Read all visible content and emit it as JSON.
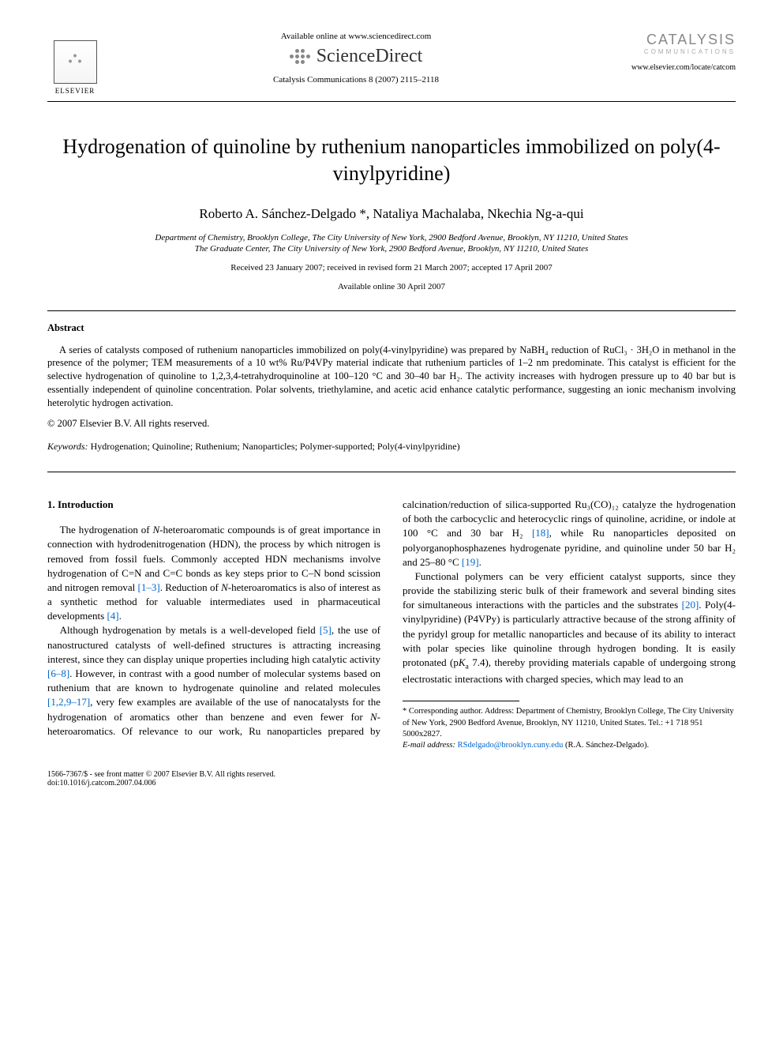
{
  "header": {
    "elsevier_label": "ELSEVIER",
    "available_online": "Available online at www.sciencedirect.com",
    "sciencedirect": "ScienceDirect",
    "journal_ref": "Catalysis Communications 8 (2007) 2115–2118",
    "journal_logo": "CATALYSIS",
    "journal_logo_sub": "COMMUNICATIONS",
    "locate_url": "www.elsevier.com/locate/catcom"
  },
  "title": "Hydrogenation of quinoline by ruthenium nanoparticles immobilized on poly(4-vinylpyridine)",
  "authors": "Roberto A. Sánchez-Delgado *, Nataliya Machalaba, Nkechia Ng-a-qui",
  "affiliations": [
    "Department of Chemistry, Brooklyn College, The City University of New York, 2900 Bedford Avenue, Brooklyn, NY 11210, United States",
    "The Graduate Center, The City University of New York, 2900 Bedford Avenue, Brooklyn, NY 11210, United States"
  ],
  "dates_line1": "Received 23 January 2007; received in revised form 21 March 2007; accepted 17 April 2007",
  "dates_line2": "Available online 30 April 2007",
  "abstract_heading": "Abstract",
  "abstract_text": "A series of catalysts composed of ruthenium nanoparticles immobilized on poly(4-vinylpyridine) was prepared by NaBH₄ reduction of RuCl₃ · 3H₂O in methanol in the presence of the polymer; TEM measurements of a 10 wt% Ru/P4VPy material indicate that ruthenium particles of 1–2 nm predominate. This catalyst is efficient for the selective hydrogenation of quinoline to 1,2,3,4-tetrahydroquinoline at 100–120 °C and 30–40 bar H₂. The activity increases with hydrogen pressure up to 40 bar but is essentially independent of quinoline concentration. Polar solvents, triethylamine, and acetic acid enhance catalytic performance, suggesting an ionic mechanism involving heterolytic hydrogen activation.",
  "abstract_copyright": "© 2007 Elsevier B.V. All rights reserved.",
  "keywords_label": "Keywords:",
  "keywords": " Hydrogenation; Quinoline; Ruthenium; Nanoparticles; Polymer-supported; Poly(4-vinylpyridine)",
  "intro_heading": "1. Introduction",
  "para1_a": "The hydrogenation of ",
  "para1_b": "-heteroaromatic compounds is of great importance in connection with hydrodenitrogenation (HDN), the process by which nitrogen is removed from fossil fuels. Commonly accepted HDN mechanisms involve hydrogenation of C=N and C=C bonds as key steps prior to C–N bond scission and nitrogen removal ",
  "ref1": "[1–3]",
  "para1_c": ". Reduction of ",
  "para1_d": "-heteroaromatics is also of interest as a synthetic method for valuable intermediates used in pharmaceutical developments ",
  "ref2": "[4]",
  "para1_e": ".",
  "para2_a": "Although hydrogenation by metals is a well-developed field ",
  "ref3": "[5]",
  "para2_b": ", the use of nanostructured catalysts of well-defined structures is attracting increasing interest, since they can display unique properties including high catalytic activity ",
  "ref4": "[6–8]",
  "para2_c": ". However, in contrast with a good number of molecular ",
  "para2_d": "systems based on ruthenium that are known to hydrogenate quinoline and related molecules ",
  "ref5": "[1,2,9–17]",
  "para2_e": ", very few examples are available of the use of nanocatalysts for the hydrogenation of aromatics other than benzene and even fewer for ",
  "para2_f": "-heteroaromatics. Of relevance to our work, Ru nanoparticles prepared by calcination/reduction of silica-supported Ru₃(CO)₁₂ catalyze the hydrogenation of both the carbocyclic and heterocyclic rings of quinoline, acridine, or indole at 100 °C and 30 bar H₂ ",
  "ref6": "[18]",
  "para2_g": ", while Ru nanoparticles deposited on polyorganophosphazenes hydrogenate pyridine, and quinoline under 50 bar H₂ and 25–80 °C ",
  "ref7": "[19]",
  "para2_h": ".",
  "para3_a": "Functional polymers can be very efficient catalyst supports, since they provide the stabilizing steric bulk of their framework and several binding sites for simultaneous interactions with the particles and the substrates ",
  "ref8": "[20]",
  "para3_b": ". Poly(4-vinylpyridine) (P4VPy) is particularly attractive because of the strong affinity of the pyridyl group for metallic nanoparticles and because of its ability to interact with polar species like quinoline through hydrogen bonding. It is easily protonated (p",
  "para3_c": " 7.4), thereby providing materials capable of undergoing strong electrostatic interactions with charged species, which may lead to an",
  "footnote_marker": "*",
  "footnote_text": " Corresponding author. Address: Department of Chemistry, Brooklyn College, The City University of New York, 2900 Bedford Avenue, Brooklyn, NY 11210, United States. Tel.: +1 718 951 5000x2827.",
  "footnote_email_label": "E-mail address:",
  "footnote_email": " RSdelgado@brooklyn.cuny.edu",
  "footnote_email_tail": " (R.A. Sánchez-Delgado).",
  "footer_line1": "1566-7367/$ - see front matter © 2007 Elsevier B.V. All rights reserved.",
  "footer_line2": "doi:10.1016/j.catcom.2007.04.006",
  "style": {
    "page_bg": "#ffffff",
    "text_color": "#000000",
    "link_color": "#0066cc",
    "rule_color": "#000000",
    "logo_gray": "#888888",
    "title_fontsize": 26,
    "author_fontsize": 17,
    "body_fontsize": 13,
    "abstract_fontsize": 12.5,
    "footnote_fontsize": 10.5,
    "column_gap": 28
  }
}
